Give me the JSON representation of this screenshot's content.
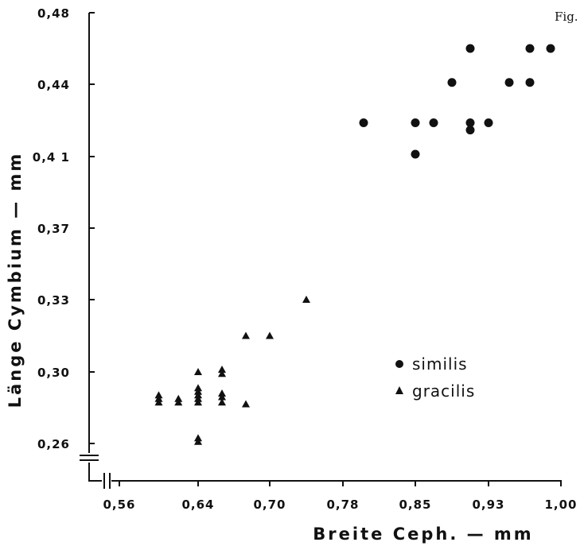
{
  "fig_label": "Fig.",
  "chart_data": {
    "type": "scatter",
    "xlabel": "Breite Ceph. — mm",
    "ylabel": "Länge Cymbium — mm",
    "x_ticks": [
      {
        "value": 0.56,
        "label": "0,56"
      },
      {
        "value": 0.64,
        "label": "0,64"
      },
      {
        "value": 0.7,
        "label": "0,70"
      },
      {
        "value": 0.78,
        "label": "0,78"
      },
      {
        "value": 0.85,
        "label": "0,85"
      },
      {
        "value": 0.93,
        "label": "0,93"
      },
      {
        "value": 1.0,
        "label": "1,00"
      }
    ],
    "y_ticks": [
      {
        "value": 0.26,
        "label": "0,26"
      },
      {
        "value": 0.3,
        "label": "0,30"
      },
      {
        "value": 0.33,
        "label": "0,33"
      },
      {
        "value": 0.37,
        "label": "0,37"
      },
      {
        "value": 0.41,
        "label": "0,4 1"
      },
      {
        "value": 0.44,
        "label": "0,44"
      },
      {
        "value": 0.48,
        "label": "0,48"
      }
    ],
    "xlim": [
      0.52,
      1.0
    ],
    "ylim": [
      0.245,
      0.48
    ],
    "axis_breaks": true,
    "grid": false,
    "legend_position": "right-middle",
    "series": [
      {
        "name": "similis",
        "marker": "circle",
        "points": [
          [
            0.8,
            0.424
          ],
          [
            0.85,
            0.424
          ],
          [
            0.85,
            0.411
          ],
          [
            0.87,
            0.424
          ],
          [
            0.89,
            0.441
          ],
          [
            0.91,
            0.424
          ],
          [
            0.91,
            0.421
          ],
          [
            0.91,
            0.46
          ],
          [
            0.93,
            0.424
          ],
          [
            0.95,
            0.441
          ],
          [
            0.97,
            0.441
          ],
          [
            0.97,
            0.46
          ],
          [
            0.99,
            0.46
          ]
        ]
      },
      {
        "name": "gracilis",
        "marker": "triangle",
        "points": [
          [
            0.6,
            0.287
          ],
          [
            0.6,
            0.285
          ],
          [
            0.6,
            0.283
          ],
          [
            0.62,
            0.285
          ],
          [
            0.62,
            0.283
          ],
          [
            0.64,
            0.3
          ],
          [
            0.64,
            0.291
          ],
          [
            0.64,
            0.289
          ],
          [
            0.64,
            0.287
          ],
          [
            0.64,
            0.285
          ],
          [
            0.64,
            0.283
          ],
          [
            0.64,
            0.263
          ],
          [
            0.64,
            0.261
          ],
          [
            0.66,
            0.301
          ],
          [
            0.66,
            0.299
          ],
          [
            0.66,
            0.288
          ],
          [
            0.66,
            0.286
          ],
          [
            0.66,
            0.283
          ],
          [
            0.68,
            0.315
          ],
          [
            0.68,
            0.282
          ],
          [
            0.7,
            0.315
          ],
          [
            0.74,
            0.33
          ]
        ]
      }
    ]
  }
}
